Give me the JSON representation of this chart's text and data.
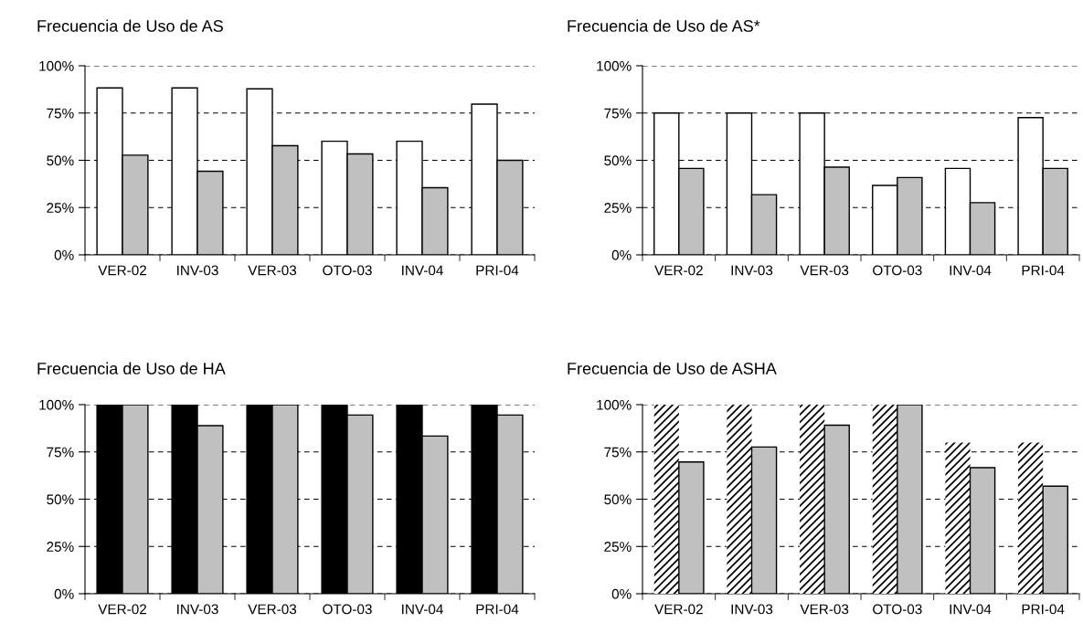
{
  "chart_data": [
    {
      "type": "bar",
      "title": "Frecuencia de Uso de AS",
      "categories": [
        "VER-02",
        "INV-03",
        "VER-03",
        "OTO-03",
        "INV-04",
        "PRI-04"
      ],
      "ylim": [
        0,
        100
      ],
      "yticks": [
        {
          "value": 0,
          "label": "0%"
        },
        {
          "value": 25,
          "label": "25%"
        },
        {
          "value": 50,
          "label": "50%"
        },
        {
          "value": 75,
          "label": "75%"
        },
        {
          "value": 100,
          "label": "100%"
        }
      ],
      "grid": "y",
      "line_style": "dashed",
      "series": [
        {
          "color": "#ffffff",
          "values": [
            88.3,
            88.3,
            87.8,
            60.1,
            60.1,
            79.7
          ]
        },
        {
          "color": "#c0c0c0",
          "values": [
            52.7,
            44.2,
            57.7,
            53.4,
            35.5,
            50
          ]
        }
      ]
    },
    {
      "type": "bar",
      "title": "Frecuencia de Uso de AS*",
      "categories": [
        "VER-02",
        "INV-03",
        "VER-03",
        "OTO-03",
        "INV-04",
        "PRI-04"
      ],
      "ylim": [
        0,
        100
      ],
      "yticks": [
        {
          "value": 0,
          "label": "0%"
        },
        {
          "value": 25,
          "label": "25%"
        },
        {
          "value": 50,
          "label": "50%"
        },
        {
          "value": 75,
          "label": "75%"
        },
        {
          "value": 100,
          "label": "100%"
        }
      ],
      "grid": "y",
      "line_style": "dashed",
      "series": [
        {
          "color": "#ffffff",
          "values": [
            75,
            75,
            75,
            36.7,
            45.7,
            72.6
          ]
        },
        {
          "color": "#c0c0c0",
          "values": [
            45.7,
            31.8,
            46.4,
            40.9,
            27.6,
            45.7
          ]
        }
      ]
    },
    {
      "type": "bar",
      "title": "Frecuencia de Uso de HA",
      "categories": [
        "VER-02",
        "INV-03",
        "VER-03",
        "OTO-03",
        "INV-04",
        "PRI-04"
      ],
      "ylim": [
        0,
        100
      ],
      "yticks": [
        {
          "value": 0,
          "label": "0%"
        },
        {
          "value": 25,
          "label": "25%"
        },
        {
          "value": 50,
          "label": "50%"
        },
        {
          "value": 75,
          "label": "75%"
        },
        {
          "value": 100,
          "label": "100%"
        }
      ],
      "grid": "y",
      "line_style": "dashed",
      "series": [
        {
          "color": "#000000",
          "values": [
            100,
            100,
            100,
            100,
            100,
            100
          ]
        },
        {
          "color": "#c0c0c0",
          "values": [
            100,
            88.9,
            100,
            94.5,
            83.4,
            94.5
          ]
        }
      ]
    },
    {
      "type": "bar",
      "title": "Frecuencia de Uso de ASHA",
      "categories": [
        "VER-02",
        "INV-03",
        "VER-03",
        "OTO-03",
        "INV-04",
        "PRI-04"
      ],
      "ylim": [
        0,
        100
      ],
      "yticks": [
        {
          "value": 0,
          "label": "0%"
        },
        {
          "value": 25,
          "label": "25%"
        },
        {
          "value": 50,
          "label": "50%"
        },
        {
          "value": 75,
          "label": "75%"
        },
        {
          "value": 100,
          "label": "100%"
        }
      ],
      "grid": "y",
      "line_style": "dashed",
      "series": [
        {
          "color": "#000000",
          "values": [
            100,
            100,
            100,
            100,
            80,
            80
          ]
        },
        {
          "color": "#c0c0c0",
          "values": [
            69.7,
            77.6,
            89.1,
            100,
            66.7,
            56.9
          ]
        }
      ]
    }
  ]
}
